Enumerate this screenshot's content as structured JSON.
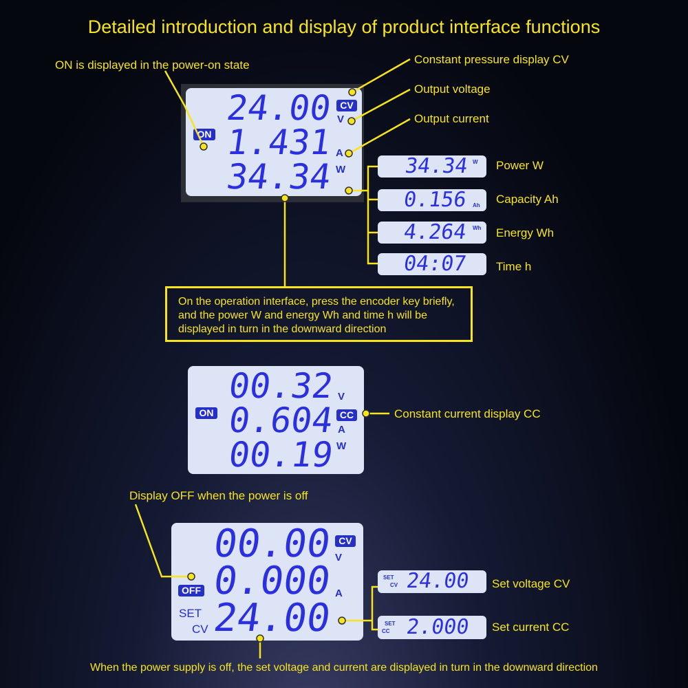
{
  "title": "Detailed introduction and display of product interface functions",
  "callouts": {
    "on_state": "ON is displayed in the power-on state",
    "cv": "Constant pressure display CV",
    "output_voltage": "Output voltage",
    "output_current": "Output current",
    "power": "Power W",
    "capacity": "Capacity Ah",
    "energy": "Energy Wh",
    "time": "Time h",
    "encoder_note": "On the operation interface, press the encoder key briefly, and the power W and energy Wh and time h will be displayed in turn in the downward direction",
    "cc": "Constant current display CC",
    "off_state": "Display OFF when the power is off",
    "set_voltage": "Set voltage CV",
    "set_current": "Set current CC",
    "footer": "When the power supply is off, the set voltage and current are displayed in turn in the downward direction"
  },
  "panel1": {
    "voltage": "24.00",
    "current": "1.431",
    "power": "34.34",
    "status": "ON",
    "mode": "CV",
    "units": {
      "v": "V",
      "a": "A",
      "w": "W"
    }
  },
  "cycle": [
    {
      "value": "34.34",
      "unit": "W"
    },
    {
      "value": "0.156",
      "unit": "Ah"
    },
    {
      "value": "4.264",
      "unit": "Wh"
    },
    {
      "value": "04:07",
      "unit": ""
    }
  ],
  "panel2": {
    "voltage": "00.32",
    "current": "0.604",
    "power": "00.19",
    "status": "ON",
    "mode": "CC",
    "units": {
      "v": "V",
      "a": "A",
      "w": "W"
    }
  },
  "panel3": {
    "voltage": "00.00",
    "current": "0.000",
    "set": "24.00",
    "status": "OFF",
    "mode": "CV",
    "set_label": "SET",
    "set_mode": "CV",
    "units": {
      "v": "V",
      "a": "A"
    }
  },
  "set_cycle": [
    {
      "set": "SET",
      "mode": "CV",
      "value": "24.00"
    },
    {
      "set": "SET",
      "mode": "CC",
      "value": "2.000"
    }
  ],
  "colors": {
    "accent": "#f7e41c",
    "lcd_digits": "#2a30e0",
    "lcd_background": "#dde4f6"
  }
}
